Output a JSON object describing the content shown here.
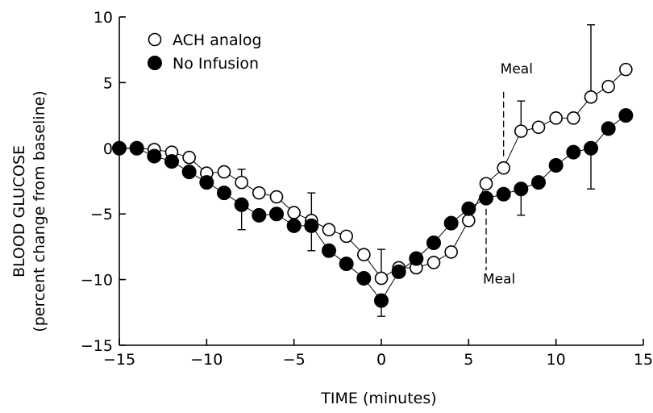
{
  "chart_data": {
    "type": "scatter",
    "title": "",
    "xlabel": "TIME (minutes)",
    "ylabel": [
      "BLOOD GLUCOSE",
      "(percent change from baseline)"
    ],
    "xlim": [
      -15,
      15
    ],
    "ylim": [
      -15,
      10
    ],
    "xticks": [
      -15,
      -10,
      -5,
      0,
      5,
      10,
      15
    ],
    "yticks": [
      -15,
      -10,
      -5,
      0,
      5,
      10
    ],
    "xtick_labels": [
      "−15",
      "−10",
      "−5",
      "0",
      "5",
      "10",
      "15"
    ],
    "ytick_labels": [
      "−15",
      "−10",
      "−5",
      "0",
      "5",
      "10"
    ],
    "grid": false,
    "legend_position": "top-left",
    "series": [
      {
        "name": "ACH analog",
        "marker": "open-circle",
        "color": "#000000",
        "x": [
          -15,
          -14,
          -13,
          -12,
          -11,
          -10,
          -9,
          -8,
          -7,
          -6,
          -5,
          -4,
          -3,
          -2,
          -1,
          0,
          1,
          2,
          3,
          4,
          5,
          6,
          7,
          8,
          9,
          10,
          11,
          12,
          13,
          14
        ],
        "y": [
          0,
          0,
          -0.1,
          -0.3,
          -0.7,
          -1.9,
          -1.8,
          -2.6,
          -3.4,
          -3.7,
          -4.9,
          -5.5,
          -6.2,
          -6.7,
          -8.1,
          -9.9,
          -9.1,
          -9.1,
          -8.7,
          -7.9,
          -5.5,
          -2.7,
          -1.5,
          1.3,
          1.6,
          2.3,
          2.3,
          3.9,
          4.7,
          6.0
        ]
      },
      {
        "name": "No Infusion",
        "marker": "filled-circle",
        "color": "#000000",
        "x": [
          -15,
          -14,
          -13,
          -12,
          -11,
          -10,
          -9,
          -8,
          -7,
          -6,
          -5,
          -4,
          -3,
          -2,
          -1,
          0,
          1,
          2,
          3,
          4,
          5,
          6,
          7,
          8,
          9,
          10,
          11,
          12,
          13,
          14
        ],
        "y": [
          0,
          0,
          -0.6,
          -1.0,
          -1.8,
          -2.6,
          -3.4,
          -4.3,
          -5.1,
          -5.0,
          -5.9,
          -5.9,
          -7.8,
          -8.8,
          -9.9,
          -11.6,
          -9.4,
          -8.4,
          -7.2,
          -5.7,
          -4.6,
          -3.8,
          -3.5,
          -3.1,
          -2.6,
          -1.3,
          -0.3,
          0.0,
          1.5,
          2.5
        ]
      }
    ],
    "error_bars": [
      {
        "x": -8,
        "y": -4.3,
        "to": -6.2
      },
      {
        "x": -8,
        "y": -2.6,
        "to": -1.6
      },
      {
        "x": -4,
        "y": -5.5,
        "to": -3.4
      },
      {
        "x": -4,
        "y": -5.9,
        "to": -7.8
      },
      {
        "x": 0,
        "y": -9.9,
        "to": -7.7
      },
      {
        "x": 0,
        "y": -11.6,
        "to": -12.8
      },
      {
        "x": 8,
        "y": 1.3,
        "to": 3.6
      },
      {
        "x": 8,
        "y": -3.1,
        "to": -5.1
      },
      {
        "x": 12,
        "y": 3.9,
        "to": 9.4
      },
      {
        "x": 12,
        "y": 0.0,
        "to": -3.1
      }
    ],
    "annotations": [
      {
        "text": "Meal",
        "x": 7,
        "y_text": 5.7,
        "line_from": 4.3,
        "line_to": -0.8
      },
      {
        "text": "Meal",
        "x": 6,
        "y_text": -10.3,
        "line_from": -4.6,
        "line_to": -9.3
      }
    ]
  }
}
